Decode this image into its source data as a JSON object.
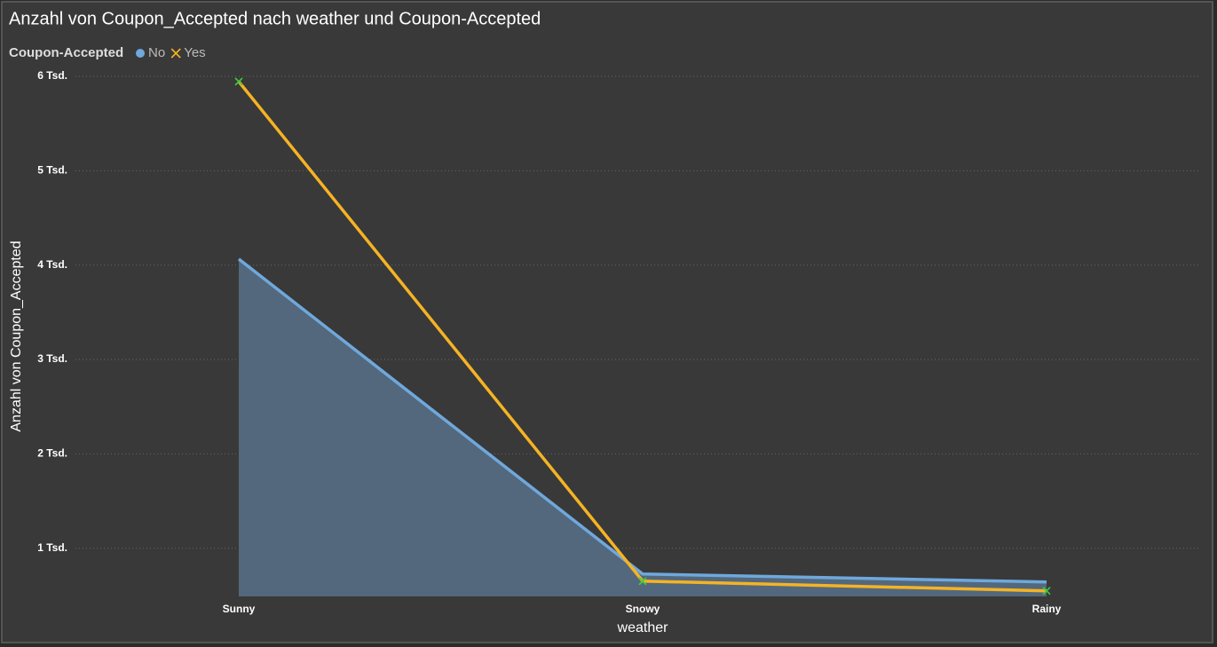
{
  "chart_data": {
    "type": "line",
    "title": "Anzahl von Coupon_Accepted nach weather und Coupon-Accepted",
    "legend_title": "Coupon-Accepted",
    "x_label": "weather",
    "y_label": "Anzahl von Coupon_Accepted",
    "categories": [
      "Sunny",
      "Snowy",
      "Rainy"
    ],
    "series": [
      {
        "name": "No",
        "color": "#6fa8dc",
        "fill": true,
        "marker": "circle",
        "values": [
          4064,
          727,
          643
        ]
      },
      {
        "name": "Yes",
        "color": "#f5b324",
        "fill": false,
        "marker": "x",
        "marker_color": "#3ecf3e",
        "values": [
          5944,
          652,
          549
        ]
      }
    ],
    "ylim": [
      490,
      6000
    ],
    "yticks": [
      {
        "value": 1000,
        "label": "1 Tsd."
      },
      {
        "value": 2000,
        "label": "2 Tsd."
      },
      {
        "value": 3000,
        "label": "3 Tsd."
      },
      {
        "value": 4000,
        "label": "4 Tsd."
      },
      {
        "value": 5000,
        "label": "5 Tsd."
      },
      {
        "value": 6000,
        "label": "6 Tsd."
      }
    ],
    "grid": true,
    "legend_position": "top-left"
  }
}
